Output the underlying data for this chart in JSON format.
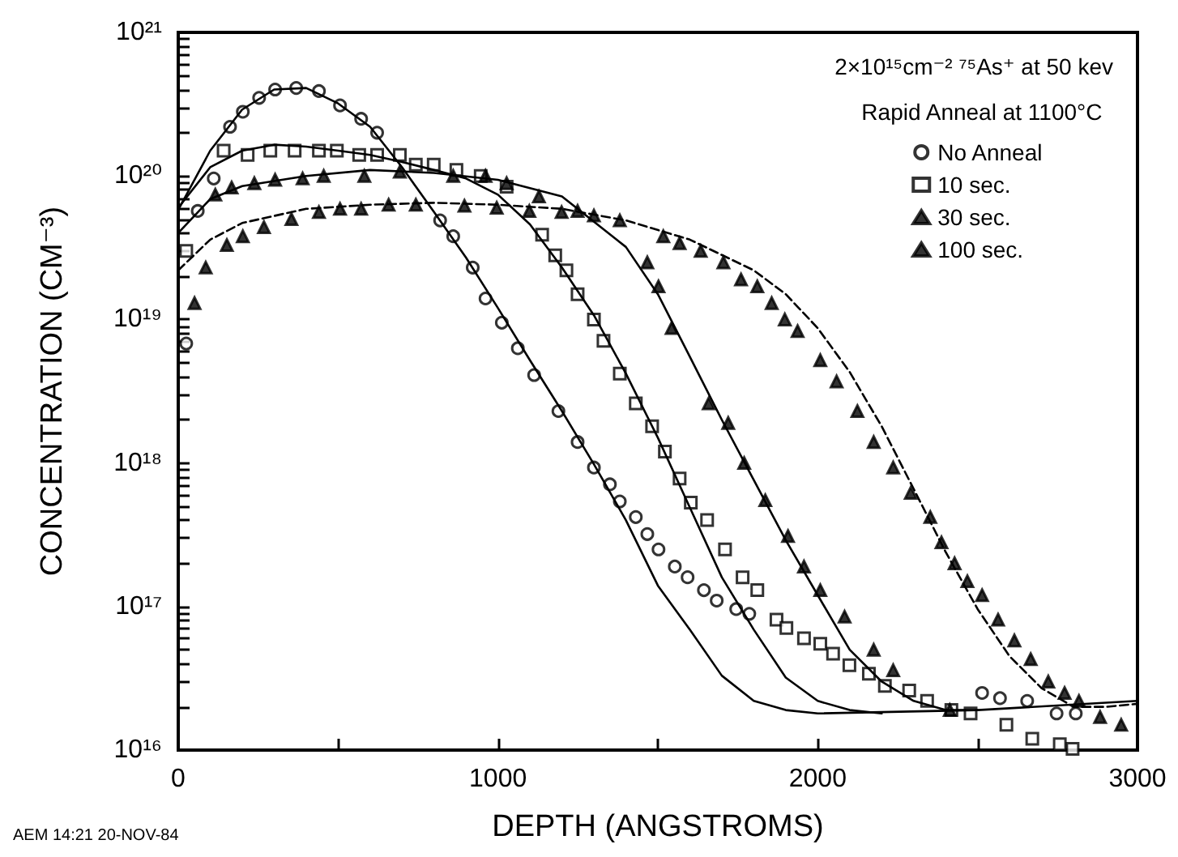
{
  "chart_data": {
    "type": "scatter",
    "xlabel": "DEPTH (ANGSTROMS)",
    "ylabel": "CONCENTRATION (CM⁻³)",
    "legend_title": "Rapid Anneal at 1100°C",
    "annotations": [
      "2×10¹⁵cm⁻² ⁷⁵As⁺ at 50 kev",
      "AEM 14:21 20-NOV-84"
    ],
    "log": "y",
    "grid": false,
    "legend": "top right",
    "xlim": [
      0,
      3000
    ],
    "xticks": [
      0,
      {
        "value": 500,
        "label": null
      },
      1000,
      {
        "value": 1500,
        "label": null
      },
      2000,
      {
        "value": 2500,
        "label": null
      },
      3000
    ],
    "ylim": [
      1e+16,
      1e+21
    ],
    "yticks": [
      {
        "value": 1e+16,
        "label": "10¹⁶"
      },
      {
        "value": 1e+17,
        "label": "10¹⁷"
      },
      {
        "value": 1e+18,
        "label": "10¹⁸"
      },
      {
        "value": 1e+19,
        "label": "10¹⁹"
      },
      {
        "value": 1e+20,
        "label": "10²⁰"
      },
      {
        "value": 1e+21,
        "label": "10²¹"
      }
    ],
    "series": [
      {
        "name": "No Anneal",
        "color": "#000000",
        "marker": "circle",
        "x": [
          25,
          61,
          111,
          162,
          202,
          253,
          303,
          369,
          440,
          506,
          572,
          622,
          819,
          860,
          921,
          961,
          1012,
          1062,
          1113,
          1189,
          1249,
          1300,
          1350,
          1381,
          1431,
          1467,
          1502,
          1553,
          1593,
          1644,
          1684,
          1745,
          1786,
          2514,
          2570,
          2655,
          2747,
          2807
        ],
        "values": [
          6.8e+18,
          5.7e+19,
          9.6e+19,
          2.2e+20,
          2.8e+20,
          3.5e+20,
          4e+20,
          4.1e+20,
          3.9e+20,
          3.1e+20,
          2.5e+20,
          2e+20,
          4.9e+19,
          3.8e+19,
          2.3e+19,
          1.4e+19,
          9.5e+18,
          6.3e+18,
          4.1e+18,
          2.3e+18,
          1.4e+18,
          9.3e+17,
          7.1e+17,
          5.4e+17,
          4.2e+17,
          3.2e+17,
          2.5e+17,
          1.9e+17,
          1.6e+17,
          1.3e+17,
          1.1e+17,
          9.6e+16,
          8.9e+16,
          2.5e+16,
          2.3e+16,
          2.2e+16,
          1.8e+16,
          1.8e+16
        ]
      },
      {
        "name": "10 sec.",
        "color": "#000000",
        "marker": "square",
        "x": [
          25,
          142,
          217,
          288,
          364,
          440,
          496,
          566,
          622,
          693,
          743,
          799,
          870,
          946,
          1027,
          1138,
          1179,
          1214,
          1249,
          1300,
          1330,
          1381,
          1431,
          1482,
          1522,
          1568,
          1603,
          1654,
          1710,
          1765,
          1811,
          1871,
          1902,
          1957,
          2008,
          2048,
          2099,
          2160,
          2210,
          2286,
          2342,
          2418,
          2478,
          2590,
          2671,
          2757,
          2797
        ],
        "values": [
          3e+19,
          1.5e+20,
          1.4e+20,
          1.5e+20,
          1.5e+20,
          1.5e+20,
          1.5e+20,
          1.4e+20,
          1.4e+20,
          1.4e+20,
          1.2e+20,
          1.2e+20,
          1.1e+20,
          1e+20,
          8.4e+19,
          3.9e+19,
          2.8e+19,
          2.2e+19,
          1.5e+19,
          1e+19,
          7.1e+18,
          4.2e+18,
          2.6e+18,
          1.8e+18,
          1.2e+18,
          7.8e+17,
          5.3e+17,
          4e+17,
          2.5e+17,
          1.6e+17,
          1.3e+17,
          8.1e+16,
          7.1e+16,
          6e+16,
          5.5e+16,
          4.7e+16,
          3.9e+16,
          3.4e+16,
          2.8e+16,
          2.6e+16,
          2.2e+16,
          1.9e+16,
          1.8e+16,
          1.5e+16,
          1.2e+16,
          1.1e+16,
          1.02e+16
        ]
      },
      {
        "name": "30 sec.",
        "color": "#000000",
        "marker": "triangle",
        "x": [
          116,
          167,
          238,
          303,
          389,
          455,
          582,
          693,
          860,
          961,
          1027,
          1128,
          1249,
          1467,
          1502,
          1543,
          1659,
          1720,
          1770,
          1836,
          1907,
          1957,
          2008,
          2084,
          2175,
          2236,
          2413
        ],
        "values": [
          7.4e+19,
          8.3e+19,
          8.9e+19,
          9.4e+19,
          9.6e+19,
          1e+20,
          1e+20,
          1.07e+20,
          1e+20,
          1e+20,
          8.9e+19,
          7.2e+19,
          5.7e+19,
          2.5e+19,
          1.7e+19,
          8.7e+18,
          2.6e+18,
          1.9e+18,
          1e+18,
          5.5e+17,
          3.1e+17,
          1.9e+17,
          1.3e+17,
          8.5e+16,
          5e+16,
          3.6e+16,
          1.9e+16
        ]
      },
      {
        "name": "100 sec.",
        "color": "#000000",
        "marker": "triangle",
        "x": [
          51,
          86,
          152,
          202,
          268,
          354,
          440,
          506,
          572,
          658,
          743,
          895,
          996,
          1098,
          1199,
          1300,
          1381,
          1517,
          1568,
          1634,
          1705,
          1760,
          1811,
          1856,
          1897,
          1937,
          2008,
          2059,
          2124,
          2175,
          2236,
          2291,
          2352,
          2387,
          2428,
          2468,
          2514,
          2564,
          2615,
          2666,
          2721,
          2772,
          2817,
          2883,
          2949
        ],
        "values": [
          1.3e+19,
          2.3e+19,
          3.3e+19,
          3.8e+19,
          4.4e+19,
          5e+19,
          5.6e+19,
          5.9e+19,
          5.9e+19,
          6.3e+19,
          6.3e+19,
          6.2e+19,
          6e+19,
          5.7e+19,
          5.6e+19,
          5.3e+19,
          4.9e+19,
          3.8e+19,
          3.4e+19,
          3e+19,
          2.5e+19,
          1.9e+19,
          1.7e+19,
          1.3e+19,
          1e+19,
          8.3e+18,
          5.2e+18,
          3.7e+18,
          2.3e+18,
          1.4e+18,
          9.3e+17,
          6.2e+17,
          4.2e+17,
          2.8e+17,
          2e+17,
          1.5e+17,
          1.2e+17,
          8.1e+16,
          5.8e+16,
          4.3e+16,
          3e+16,
          2.5e+16,
          2.2e+16,
          1.7e+16,
          1.5e+16
        ]
      },
      {
        "type": "line",
        "color": "#000000",
        "marker": "none",
        "line_style": "solid",
        "x": [
          0,
          100,
          200,
          300,
          400,
          500,
          600,
          700,
          800,
          900,
          1000,
          1100,
          1200,
          1300,
          1400,
          1500,
          1600,
          1700,
          1800,
          1900,
          2000,
          2500,
          3000
        ],
        "values": [
          5.8e+19,
          1.5e+20,
          2.9e+20,
          4e+20,
          4.1e+20,
          3.2e+20,
          2.2e+20,
          1.15e+20,
          5.6e+19,
          2.7e+19,
          1.2e+19,
          5.2e+18,
          2.3e+18,
          9.8e+17,
          4e+17,
          1.4e+17,
          6.9e+16,
          3.3e+16,
          2.2e+16,
          1.9e+16,
          1.8e+16,
          1.9e+16,
          2.2e+16
        ]
      },
      {
        "type": "line",
        "color": "#000000",
        "marker": "none",
        "line_style": "solid",
        "x": [
          0,
          100,
          200,
          300,
          400,
          500,
          600,
          700,
          800,
          900,
          1000,
          1100,
          1200,
          1300,
          1400,
          1500,
          1600,
          1700,
          1800,
          1900,
          2000,
          2100,
          2200
        ],
        "values": [
          6e+19,
          1.15e+20,
          1.5e+20,
          1.65e+20,
          1.6e+20,
          1.5e+20,
          1.4e+20,
          1.25e+20,
          1.1e+20,
          9.6e+19,
          7.4e+19,
          4.6e+19,
          2.3e+19,
          1.07e+19,
          4.2e+18,
          1.5e+18,
          4.9e+17,
          1.6e+17,
          6.9e+16,
          3.2e+16,
          2.2e+16,
          1.9e+16,
          1.8e+16
        ]
      },
      {
        "type": "line",
        "color": "#000000",
        "marker": "none",
        "line_style": "solid",
        "x": [
          0,
          100,
          200,
          400,
          600,
          800,
          1000,
          1200,
          1400,
          1500,
          1600,
          1700,
          1800,
          1900,
          2000,
          2100,
          2200,
          2300,
          2400,
          2500
        ],
        "values": [
          4e+19,
          6.9e+19,
          8.5e+19,
          1e+20,
          1.1e+20,
          1.05e+20,
          9.4e+19,
          7.2e+19,
          3.2e+19,
          1.5e+19,
          5.5e+18,
          2e+18,
          7.6e+17,
          2.9e+17,
          1.2e+17,
          5e+16,
          3e+16,
          2.2e+16,
          1.9e+16,
          1.9e+16
        ]
      },
      {
        "type": "line",
        "color": "#000000",
        "marker": "none",
        "line_style": "dashed",
        "x": [
          0,
          100,
          200,
          400,
          600,
          800,
          1000,
          1200,
          1400,
          1600,
          1800,
          1900,
          2000,
          2100,
          2200,
          2300,
          2400,
          2500,
          2600,
          2700,
          2800,
          2900,
          3000
        ],
        "values": [
          2.2e+19,
          3.6e+19,
          4.7e+19,
          5.9e+19,
          6.3e+19,
          6.5e+19,
          6.3e+19,
          5.9e+19,
          4.9e+19,
          3.6e+19,
          2.2e+19,
          1.5e+19,
          8.7e+18,
          4.3e+18,
          1.8e+18,
          6.6e+17,
          2.4e+17,
          9.6e+16,
          4.5e+16,
          2.7e+16,
          2e+16,
          2e+16,
          2.1e+16
        ]
      }
    ]
  }
}
